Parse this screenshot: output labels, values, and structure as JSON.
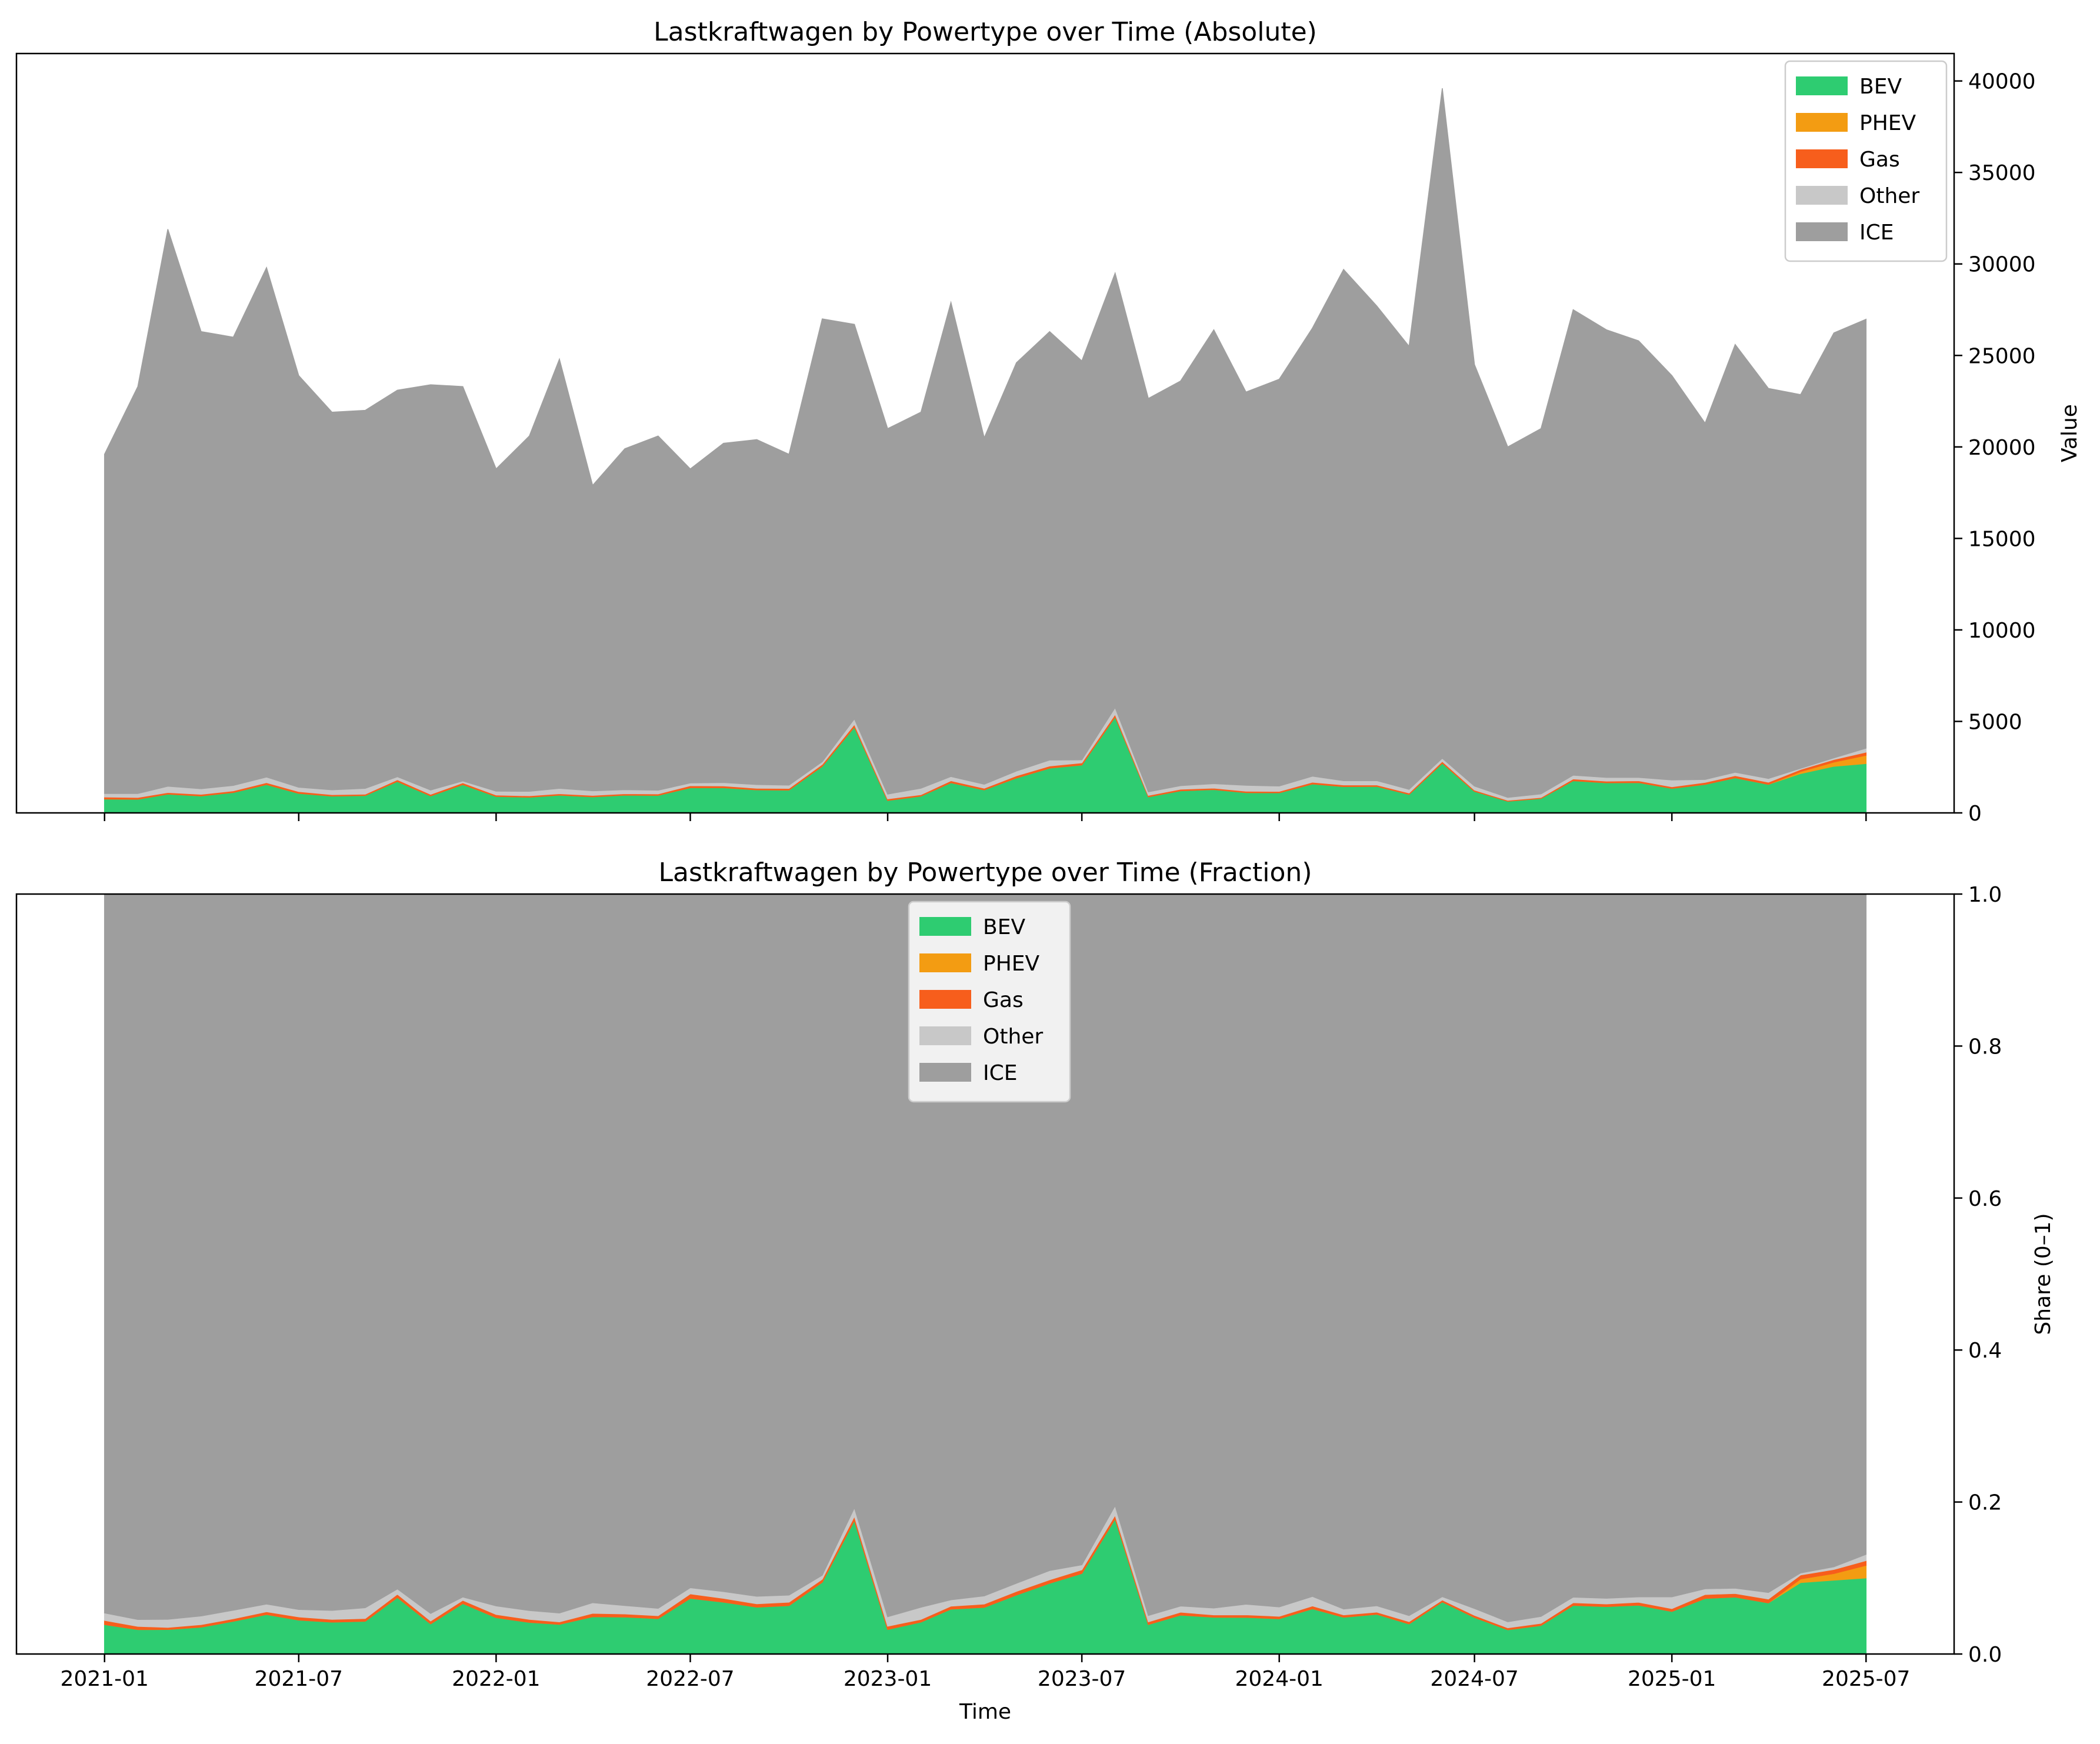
{
  "chart_data": [
    {
      "type": "area",
      "stacked": true,
      "title": "Lastkraftwagen by Powertype over Time (Absolute)",
      "xlabel": "",
      "ylabel": "Value",
      "x_start": "2021-01",
      "x_end": "2025-07",
      "xtick_labels": [
        "2021-01",
        "2021-07",
        "2022-01",
        "2022-07",
        "2023-01",
        "2023-07",
        "2024-01",
        "2024-07",
        "2025-01",
        "2025-07"
      ],
      "ylim": [
        0,
        41500
      ],
      "yticks": [
        0,
        5000,
        10000,
        15000,
        20000,
        25000,
        30000,
        35000,
        40000
      ],
      "ytick_labels": [
        "0",
        "5000",
        "10000",
        "15000",
        "20000",
        "25000",
        "30000",
        "35000",
        "40000"
      ],
      "y_axis_side": "right",
      "legend": {
        "placement": "top-right",
        "entries": [
          "BEV",
          "PHEV",
          "Gas",
          "Other",
          "ICE"
        ]
      },
      "x": [
        "2021-01",
        "2021-02",
        "2021-03",
        "2021-04",
        "2021-05",
        "2021-06",
        "2021-07",
        "2021-08",
        "2021-09",
        "2021-10",
        "2021-11",
        "2021-12",
        "2022-01",
        "2022-02",
        "2022-03",
        "2022-04",
        "2022-05",
        "2022-06",
        "2022-07",
        "2022-08",
        "2022-09",
        "2022-10",
        "2022-11",
        "2022-12",
        "2023-01",
        "2023-02",
        "2023-03",
        "2023-04",
        "2023-05",
        "2023-06",
        "2023-07",
        "2023-08",
        "2023-09",
        "2023-10",
        "2023-11",
        "2023-12",
        "2024-01",
        "2024-02",
        "2024-03",
        "2024-04",
        "2024-05",
        "2024-06",
        "2024-07",
        "2024-08",
        "2024-09",
        "2024-10",
        "2024-11",
        "2024-12",
        "2025-01",
        "2025-02",
        "2025-03",
        "2025-04",
        "2025-05",
        "2025-06",
        "2025-07"
      ],
      "series": [
        {
          "name": "BEV",
          "color": "#2ecc71",
          "values": [
            760,
            750,
            1030,
            930,
            1120,
            1550,
            1070,
            920,
            950,
            1720,
            930,
            1550,
            900,
            860,
            970,
            880,
            970,
            960,
            1380,
            1380,
            1260,
            1250,
            2550,
            4700,
            680,
            920,
            1650,
            1260,
            1910,
            2450,
            2620,
            5250,
            880,
            1210,
            1280,
            1110,
            1100,
            1580,
            1440,
            1450,
            1010,
            2720,
            1180,
            640,
            790,
            1760,
            1650,
            1660,
            1340,
            1560,
            1920,
            1560,
            2150,
            2550,
            2700
          ]
        },
        {
          "name": "PHEV",
          "color": "#f39c12",
          "values": [
            0,
            0,
            0,
            0,
            0,
            0,
            0,
            0,
            0,
            0,
            0,
            0,
            0,
            0,
            0,
            0,
            0,
            0,
            0,
            0,
            0,
            0,
            0,
            0,
            0,
            0,
            0,
            0,
            0,
            0,
            0,
            0,
            0,
            0,
            0,
            0,
            0,
            0,
            0,
            0,
            0,
            0,
            0,
            0,
            0,
            0,
            0,
            0,
            0,
            0,
            0,
            0,
            110,
            230,
            450
          ]
        },
        {
          "name": "Gas",
          "color": "#f75e1c",
          "values": [
            110,
            100,
            90,
            90,
            90,
            110,
            100,
            80,
            80,
            100,
            90,
            100,
            80,
            80,
            80,
            80,
            80,
            80,
            110,
            100,
            90,
            90,
            110,
            140,
            90,
            80,
            110,
            90,
            120,
            120,
            120,
            140,
            80,
            90,
            80,
            80,
            80,
            100,
            90,
            80,
            80,
            100,
            70,
            50,
            60,
            100,
            90,
            100,
            90,
            110,
            120,
            120,
            120,
            140,
            170
          ]
        },
        {
          "name": "Other",
          "color": "#c8c8c8",
          "values": [
            190,
            210,
            340,
            300,
            290,
            300,
            230,
            260,
            310,
            160,
            230,
            100,
            210,
            240,
            290,
            250,
            220,
            200,
            150,
            180,
            200,
            180,
            140,
            300,
            260,
            350,
            230,
            220,
            260,
            320,
            160,
            370,
            190,
            190,
            240,
            320,
            290,
            330,
            230,
            230,
            200,
            170,
            220,
            160,
            190,
            200,
            200,
            180,
            370,
            160,
            180,
            200,
            60,
            90,
            220
          ]
        },
        {
          "name": "ICE",
          "color": "#9e9e9e",
          "values": [
            18540,
            22240,
            30440,
            24980,
            24500,
            27840,
            22500,
            20640,
            20660,
            21120,
            22150,
            21550,
            17610,
            19420,
            23460,
            16690,
            18630,
            19360,
            17160,
            18540,
            18850,
            18080,
            24200,
            21560,
            19970,
            20550,
            25910,
            18930,
            22310,
            23410,
            21800,
            23740,
            21500,
            22110,
            24800,
            21490,
            22230,
            24490,
            27940,
            25940,
            24210,
            36610,
            23030,
            19150,
            19960,
            25440,
            24460,
            23860,
            22100,
            19470,
            23380,
            21320,
            20420,
            23220,
            23440
          ]
        }
      ]
    },
    {
      "type": "area",
      "stacked": true,
      "normalized": true,
      "title": "Lastkraftwagen by Powertype over Time (Fraction)",
      "xlabel": "Time",
      "ylabel": "Share (0–1)",
      "xtick_labels": [
        "2021-01",
        "2021-07",
        "2022-01",
        "2022-07",
        "2023-01",
        "2023-07",
        "2024-01",
        "2024-07",
        "2025-01",
        "2025-07"
      ],
      "ylim": [
        0,
        1
      ],
      "yticks": [
        0,
        0.2,
        0.4,
        0.6,
        0.8,
        1.0
      ],
      "ytick_labels": [
        "0.0",
        "0.2",
        "0.4",
        "0.6",
        "0.8",
        "1.0"
      ],
      "y_axis_side": "right",
      "legend": {
        "placement": "top-center",
        "entries": [
          "BEV",
          "PHEV",
          "Gas",
          "Other",
          "ICE"
        ]
      },
      "derived_from": "Lastkraftwagen by Powertype over Time (Absolute)"
    }
  ]
}
